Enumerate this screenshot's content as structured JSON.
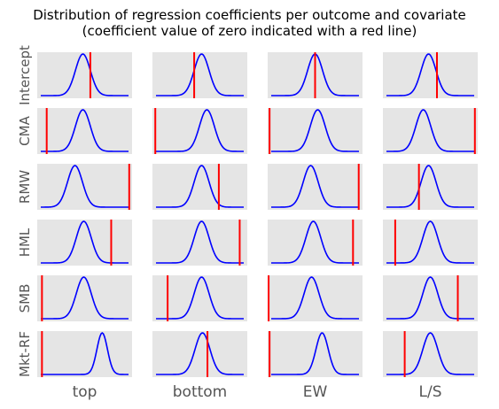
{
  "chart_data": {
    "type": "line",
    "title": "Distribution of regression coefficients per outcome and covariate",
    "subtitle": "(coefficient value of zero indicated with a red line)",
    "columns": [
      "top",
      "bottom",
      "EW",
      "L/S"
    ],
    "rows": [
      "Intercept",
      "CMA",
      "RMW",
      "HML",
      "SMB",
      "Mkt-RF"
    ],
    "grid": false,
    "background": "#e5e5e5",
    "curve_color": "#0000ff",
    "zero_line_color": "#ff0000",
    "panels": [
      [
        {
          "mean": 0.48,
          "sd": 0.085,
          "zero": 0.56
        },
        {
          "mean": 0.52,
          "sd": 0.085,
          "zero": 0.44
        },
        {
          "mean": 0.5,
          "sd": 0.085,
          "zero": 0.5
        },
        {
          "mean": 0.48,
          "sd": 0.085,
          "zero": 0.57
        }
      ],
      [
        {
          "mean": 0.48,
          "sd": 0.085,
          "zero": 0.1
        },
        {
          "mean": 0.58,
          "sd": 0.085,
          "zero": 0.03
        },
        {
          "mean": 0.53,
          "sd": 0.085,
          "zero": 0.02
        },
        {
          "mean": 0.42,
          "sd": 0.085,
          "zero": 0.97
        }
      ],
      [
        {
          "mean": 0.39,
          "sd": 0.085,
          "zero": 0.97
        },
        {
          "mean": 0.52,
          "sd": 0.085,
          "zero": 0.7
        },
        {
          "mean": 0.45,
          "sd": 0.085,
          "zero": 0.96
        },
        {
          "mean": 0.48,
          "sd": 0.085,
          "zero": 0.38
        }
      ],
      [
        {
          "mean": 0.49,
          "sd": 0.085,
          "zero": 0.78
        },
        {
          "mean": 0.52,
          "sd": 0.085,
          "zero": 0.92
        },
        {
          "mean": 0.48,
          "sd": 0.085,
          "zero": 0.9
        },
        {
          "mean": 0.5,
          "sd": 0.085,
          "zero": 0.13
        }
      ],
      [
        {
          "mean": 0.49,
          "sd": 0.085,
          "zero": 0.05
        },
        {
          "mean": 0.52,
          "sd": 0.085,
          "zero": 0.16
        },
        {
          "mean": 0.46,
          "sd": 0.085,
          "zero": 0.01
        },
        {
          "mean": 0.5,
          "sd": 0.085,
          "zero": 0.79
        }
      ],
      [
        {
          "mean": 0.7,
          "sd": 0.06,
          "zero": 0.05
        },
        {
          "mean": 0.53,
          "sd": 0.085,
          "zero": 0.58
        },
        {
          "mean": 0.58,
          "sd": 0.07,
          "zero": 0.02
        },
        {
          "mean": 0.5,
          "sd": 0.085,
          "zero": 0.23
        }
      ]
    ]
  }
}
